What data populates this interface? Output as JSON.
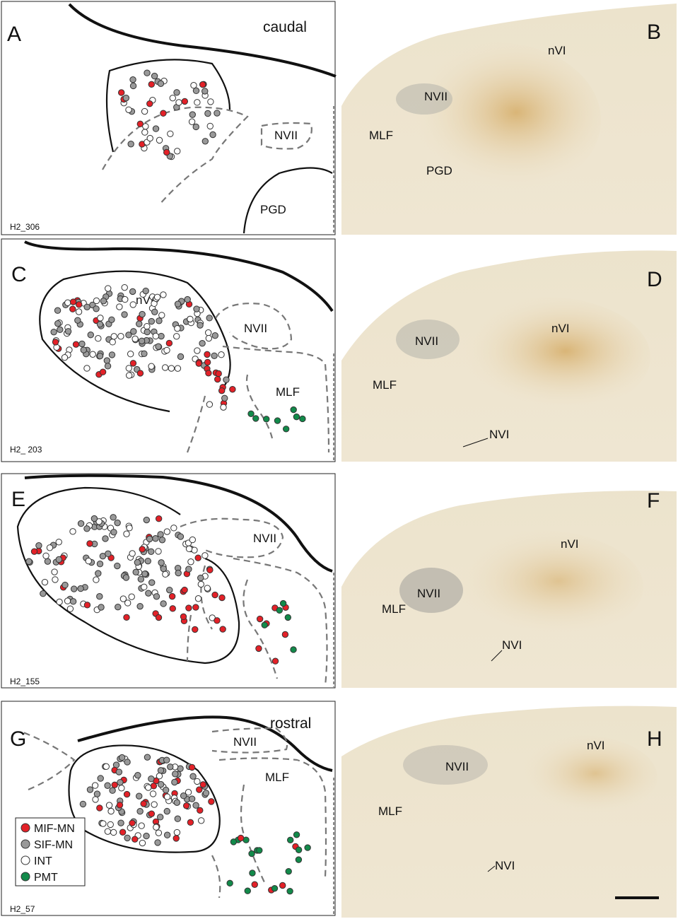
{
  "panels": [
    {
      "letter": "A",
      "labels": [
        "caudal",
        "NVII",
        "PGD"
      ],
      "section": "H2_306"
    },
    {
      "letter": "B",
      "labels": [
        "nVI",
        "NVII",
        "MLF",
        "PGD"
      ]
    },
    {
      "letter": "C",
      "labels": [
        "nVI",
        "NVII",
        "MLF"
      ],
      "section": "H2_ 203"
    },
    {
      "letter": "D",
      "labels": [
        "nVI",
        "NVII",
        "MLF",
        "NVI"
      ]
    },
    {
      "letter": "E",
      "labels": [
        "NVII"
      ],
      "section": "H2_155"
    },
    {
      "letter": "F",
      "labels": [
        "nVI",
        "NVII",
        "MLF",
        "NVI"
      ]
    },
    {
      "letter": "G",
      "labels": [
        "rostral",
        "NVII",
        "MLF"
      ],
      "section": "H2_57"
    },
    {
      "letter": "H",
      "labels": [
        "nVI",
        "NVII",
        "MLF",
        "NVI"
      ]
    }
  ],
  "legend": [
    "MIF-MN",
    "SIF-MN",
    "INT",
    "PMT"
  ]
}
